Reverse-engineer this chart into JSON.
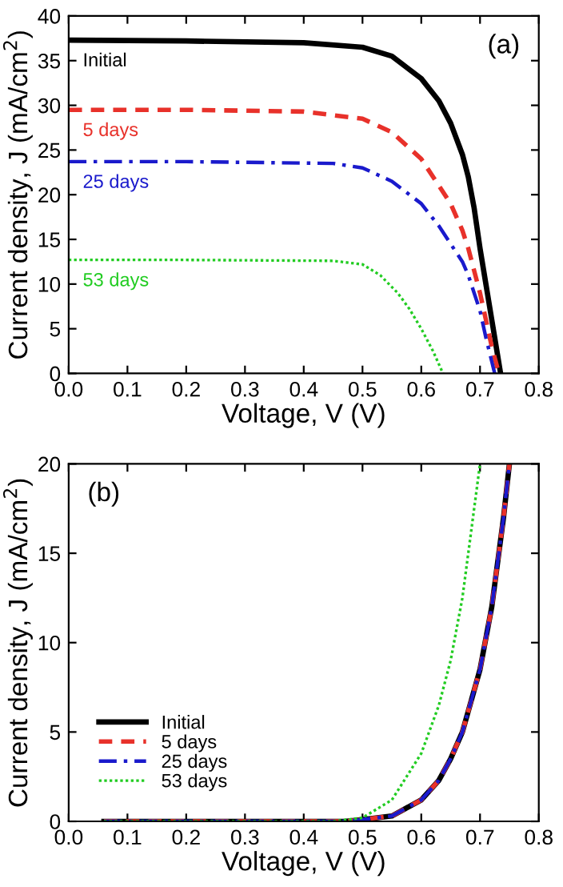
{
  "chart_data": [
    {
      "type": "line",
      "xlabel": "Voltage, V (V)",
      "ylabel": "Current density, J (mA/cm$^{2}$)",
      "annotations": [
        "(a)"
      ],
      "xlim": [
        0.0,
        0.8
      ],
      "ylim": [
        0,
        40
      ],
      "xticks": [
        {
          "value": 0.0,
          "label": "0.0"
        },
        0.1,
        0.2,
        0.3,
        0.4,
        0.5,
        0.6,
        0.7,
        0.8
      ],
      "yticks": [
        0,
        5,
        10,
        15,
        20,
        25,
        30,
        35,
        40
      ],
      "legend": false,
      "grid": false,
      "series": [
        {
          "name": "Initial",
          "color": "#000000",
          "line_style": "solid",
          "x": [
            0.0,
            0.2,
            0.4,
            0.5,
            0.55,
            0.6,
            0.63,
            0.65,
            0.67,
            0.68,
            0.69,
            0.7,
            0.71,
            0.72,
            0.73,
            0.735
          ],
          "values": [
            37.3,
            37.2,
            37.0,
            36.5,
            35.5,
            33.0,
            30.5,
            28.0,
            24.5,
            22.0,
            18.5,
            14.0,
            10.0,
            6.0,
            2.0,
            0.0
          ]
        },
        {
          "name": "5 days",
          "color": "#e8312a",
          "line_style": "dashed",
          "x": [
            0.0,
            0.2,
            0.4,
            0.5,
            0.55,
            0.6,
            0.63,
            0.65,
            0.67,
            0.68,
            0.69,
            0.7,
            0.71,
            0.72,
            0.732
          ],
          "values": [
            29.5,
            29.5,
            29.3,
            28.5,
            27.0,
            24.0,
            21.0,
            19.0,
            16.0,
            14.0,
            11.5,
            9.0,
            6.0,
            3.0,
            0.0
          ]
        },
        {
          "name": "25 days",
          "color": "#1a1acc",
          "line_style": "dashdot",
          "x": [
            0.0,
            0.2,
            0.45,
            0.5,
            0.55,
            0.6,
            0.63,
            0.65,
            0.67,
            0.68,
            0.69,
            0.7,
            0.71,
            0.725
          ],
          "values": [
            23.7,
            23.7,
            23.5,
            23.0,
            21.5,
            19.0,
            16.5,
            14.5,
            12.5,
            11.0,
            9.0,
            7.0,
            4.0,
            0.0
          ]
        },
        {
          "name": "53 days",
          "color": "#22cc22",
          "line_style": "dotted",
          "x": [
            0.0,
            0.2,
            0.45,
            0.5,
            0.53,
            0.56,
            0.58,
            0.6,
            0.62,
            0.637
          ],
          "values": [
            12.7,
            12.7,
            12.6,
            12.2,
            11.0,
            9.0,
            7.2,
            5.0,
            2.5,
            0.0
          ]
        }
      ]
    },
    {
      "type": "line",
      "xlabel": "Voltage, V (V)",
      "ylabel": "Current density, J (mA/cm$^{2}$)",
      "annotations": [
        "(b)"
      ],
      "xlim": [
        0.0,
        0.8
      ],
      "ylim": [
        0,
        20
      ],
      "xticks": [
        {
          "value": 0.0,
          "label": "0.0"
        },
        0.1,
        0.2,
        0.3,
        0.4,
        0.5,
        0.6,
        0.7,
        0.8
      ],
      "yticks": [
        0,
        5,
        10,
        15,
        20
      ],
      "legend": "bottom left",
      "grid": false,
      "series": [
        {
          "name": "Initial",
          "color": "#000000",
          "line_style": "solid",
          "x": [
            0.06,
            0.3,
            0.47,
            0.5,
            0.55,
            0.6,
            0.63,
            0.65,
            0.67,
            0.7,
            0.72,
            0.74,
            0.75
          ],
          "values": [
            0.0,
            0.0,
            0.0,
            0.1,
            0.3,
            1.2,
            2.3,
            3.5,
            5.0,
            8.5,
            12.0,
            17.0,
            20.0
          ]
        },
        {
          "name": "5 days",
          "color": "#e8312a",
          "line_style": "dashed",
          "x": [
            0.06,
            0.3,
            0.47,
            0.5,
            0.55,
            0.6,
            0.63,
            0.65,
            0.67,
            0.7,
            0.72,
            0.74,
            0.75
          ],
          "values": [
            0.0,
            0.0,
            0.0,
            0.1,
            0.3,
            1.2,
            2.3,
            3.5,
            5.0,
            8.5,
            12.0,
            17.0,
            20.0
          ]
        },
        {
          "name": "25 days",
          "color": "#1a1acc",
          "line_style": "dashdot",
          "x": [
            0.06,
            0.3,
            0.47,
            0.5,
            0.55,
            0.6,
            0.63,
            0.65,
            0.67,
            0.7,
            0.72,
            0.74,
            0.75
          ],
          "values": [
            0.0,
            0.0,
            0.0,
            0.1,
            0.3,
            1.2,
            2.3,
            3.5,
            5.0,
            8.5,
            12.0,
            17.0,
            20.0
          ]
        },
        {
          "name": "53 days",
          "color": "#22cc22",
          "line_style": "dotted",
          "x": [
            0.06,
            0.3,
            0.45,
            0.5,
            0.55,
            0.6,
            0.63,
            0.65,
            0.67,
            0.69,
            0.7
          ],
          "values": [
            0.0,
            0.0,
            0.0,
            0.2,
            1.2,
            3.8,
            6.5,
            9.0,
            12.5,
            17.5,
            20.0
          ]
        }
      ]
    }
  ]
}
